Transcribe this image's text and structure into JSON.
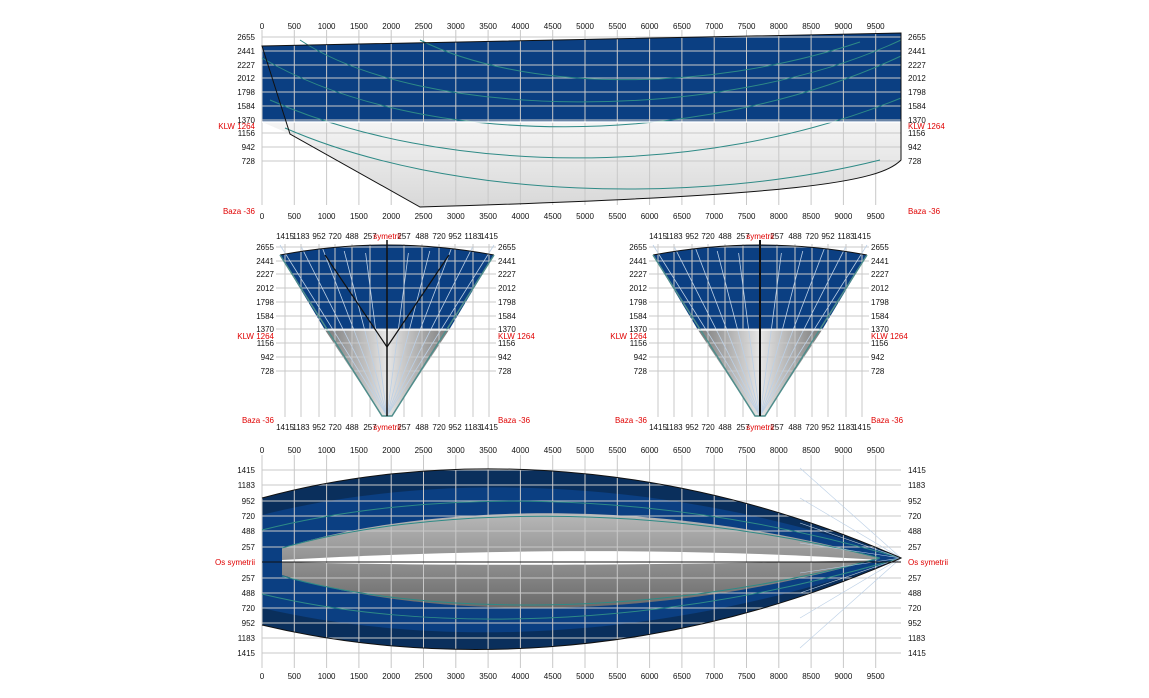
{
  "colors": {
    "above_waterline": "#0b3f82",
    "above_waterline_dark": "#0a2f5c",
    "below_waterline": "#ebebeb",
    "below_waterline_dark": "#8f8f8f",
    "grid": "#c8c8c8",
    "curve": "#2e8a86",
    "outline": "#111111",
    "ref_text": "#e00000",
    "tick_text": "#111111"
  },
  "ref_labels": {
    "waterline": "KLW 1264",
    "base": "Baza -36",
    "symmetry": "Os symetrii",
    "symmetry_short": "symetrii"
  },
  "side_view": {
    "x_ticks": [
      "0",
      "500",
      "1000",
      "1500",
      "2000",
      "2500",
      "3000",
      "3500",
      "4000",
      "4500",
      "5000",
      "5500",
      "6000",
      "6500",
      "7000",
      "7500",
      "8000",
      "8500",
      "9000",
      "9500"
    ],
    "z_ticks": [
      "2655",
      "2441",
      "2227",
      "2012",
      "1798",
      "1584",
      "1370",
      "1156",
      "942",
      "728"
    ]
  },
  "body_plan": {
    "half_breadth_ticks": [
      "1415",
      "1183",
      "952",
      "720",
      "488",
      "257",
      "257",
      "488",
      "720",
      "952",
      "1183",
      "1415"
    ],
    "z_ticks": [
      "2655",
      "2441",
      "2227",
      "2012",
      "1798",
      "1584",
      "1370",
      "1156",
      "942",
      "728"
    ]
  },
  "plan_view": {
    "x_ticks": [
      "0",
      "500",
      "1000",
      "1500",
      "2000",
      "2500",
      "3000",
      "3500",
      "4000",
      "4500",
      "5000",
      "5500",
      "6000",
      "6500",
      "7000",
      "7500",
      "8000",
      "8500",
      "9000",
      "9500"
    ],
    "y_ticks": [
      "1415",
      "1183",
      "952",
      "720",
      "488",
      "257",
      "257",
      "488",
      "720",
      "952",
      "1183",
      "1415"
    ]
  }
}
